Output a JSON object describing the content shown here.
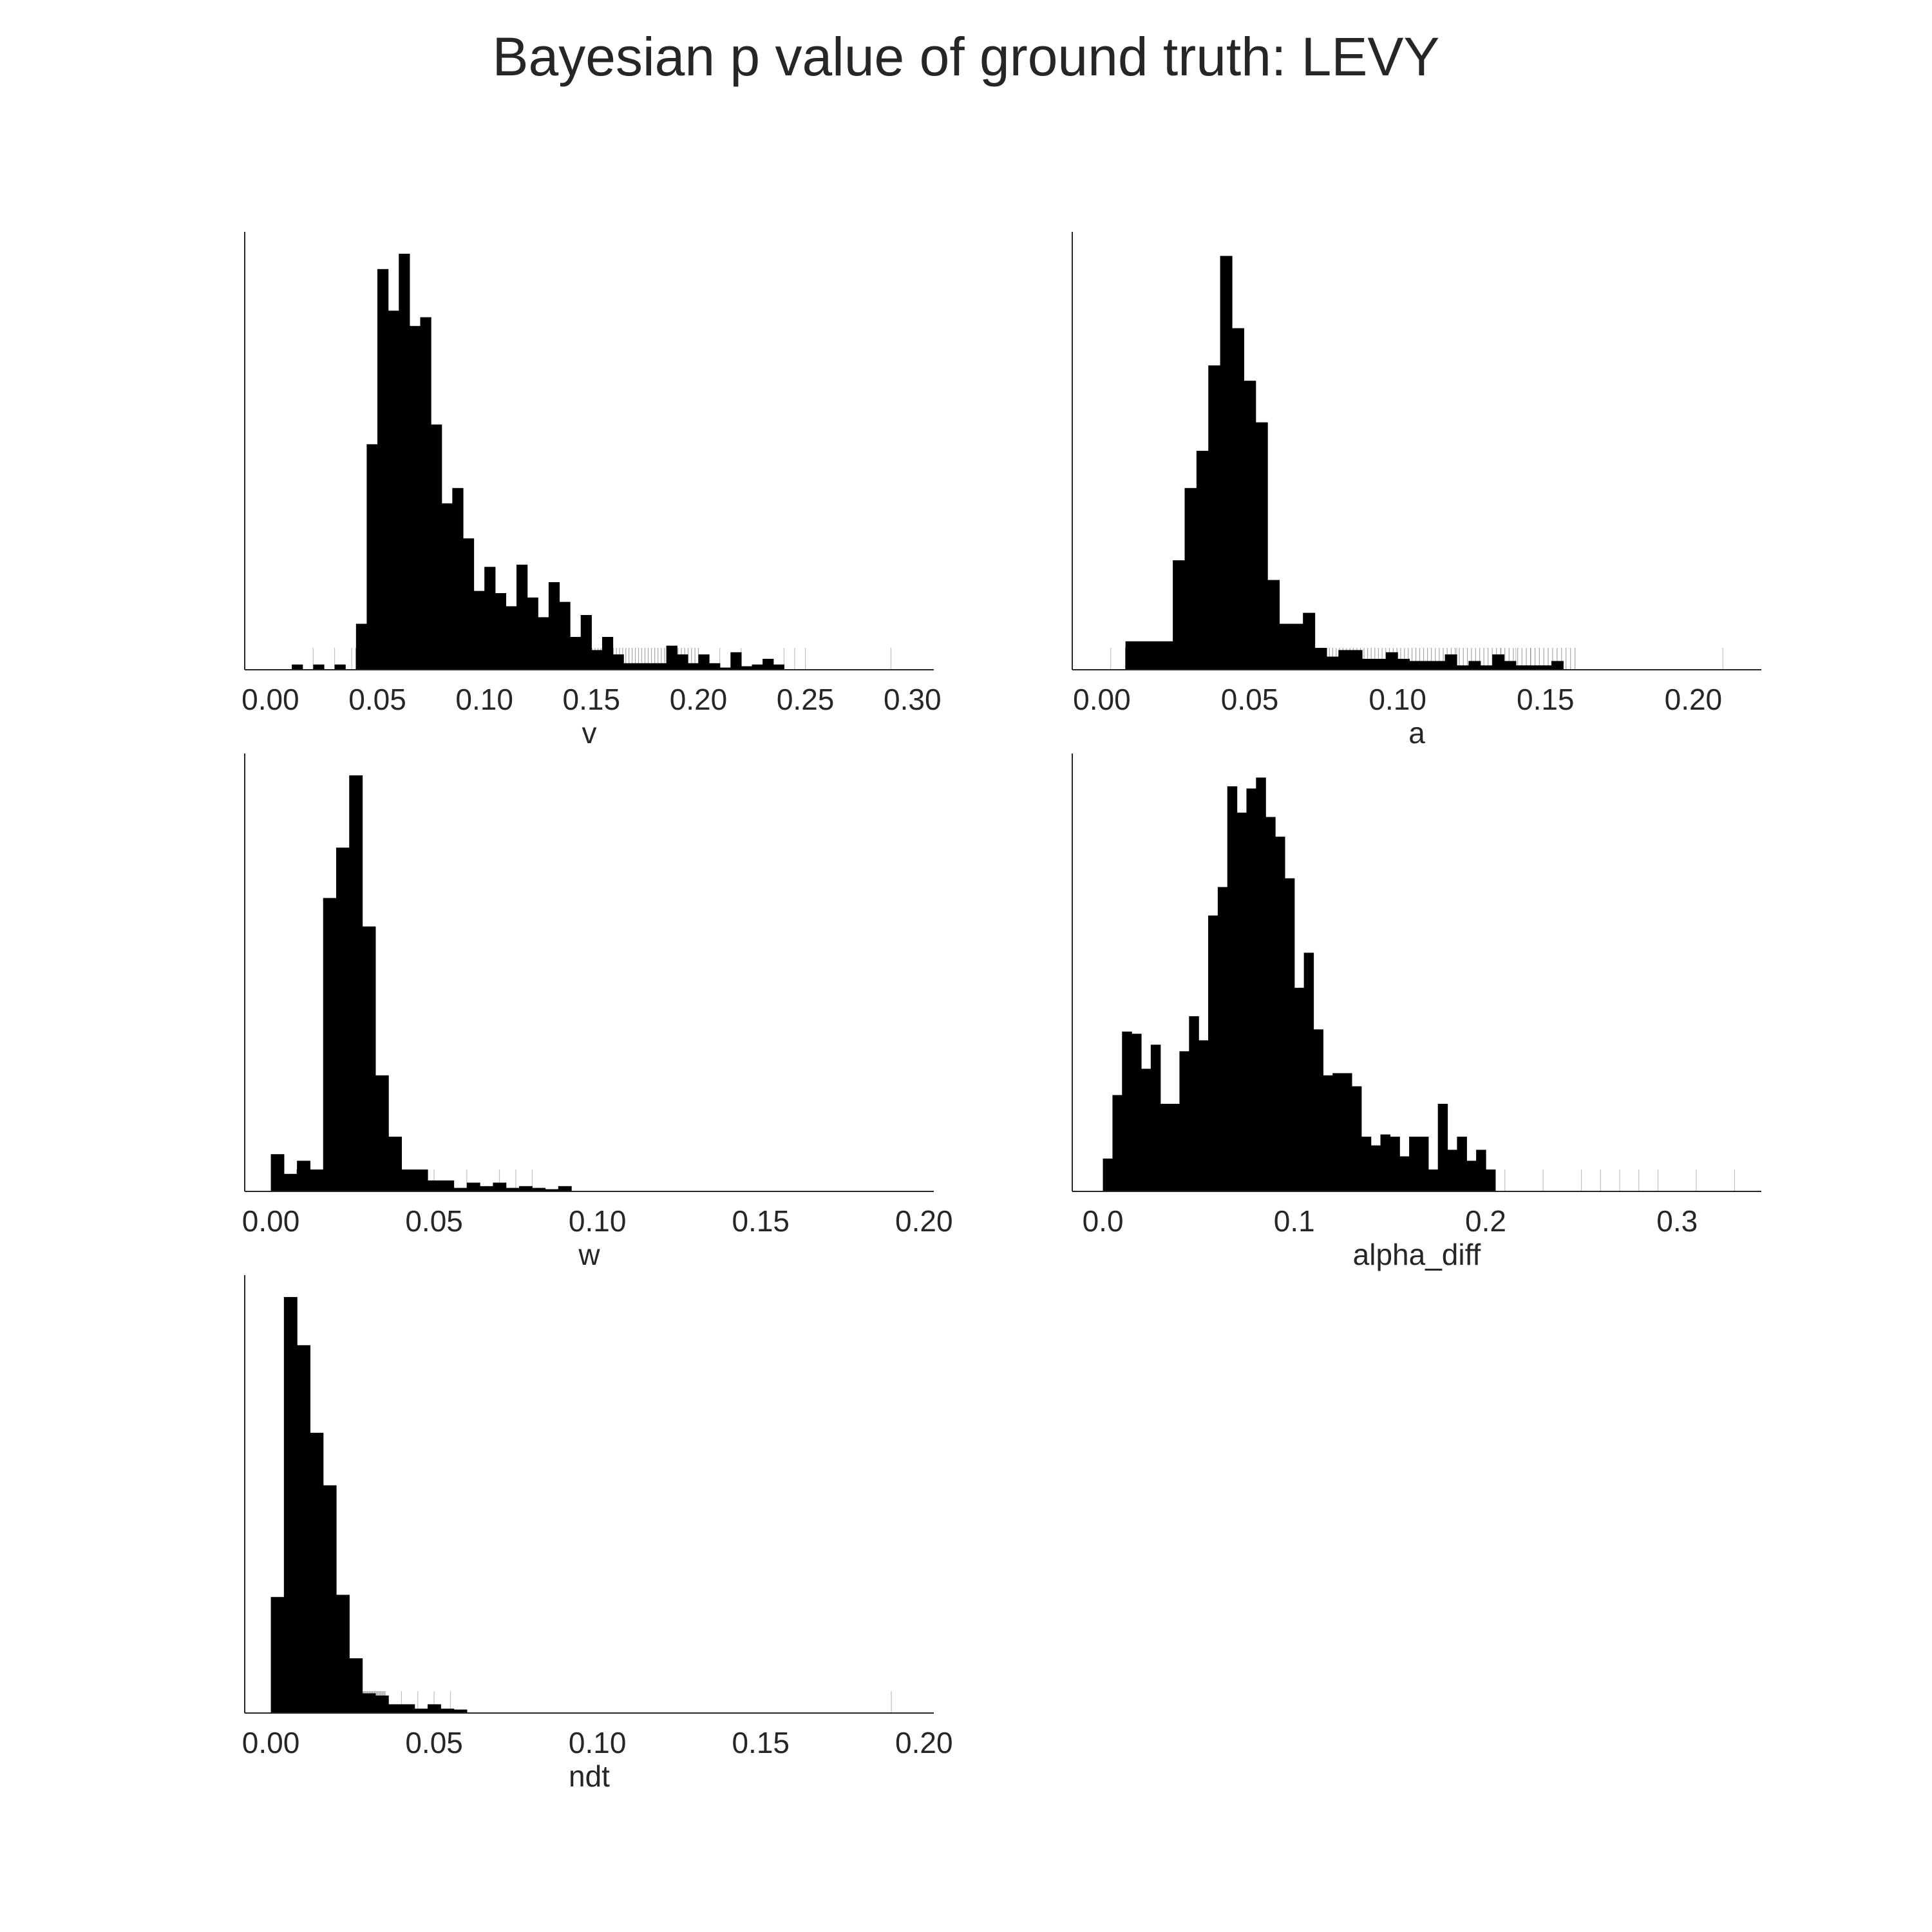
{
  "title": "Bayesian p value of ground truth: LEVY",
  "colors": {
    "bar": "#000000",
    "rug": "#000000",
    "axis": "#262626",
    "text": "#262626",
    "background": "#ffffff"
  },
  "chart_data": [
    {
      "type": "bar",
      "subtype": "histogram-with-rug",
      "xlabel": "v",
      "xlim": [
        -0.012,
        0.31
      ],
      "ylim": [
        0,
        100
      ],
      "xticks": [
        0.0,
        0.05,
        0.1,
        0.15,
        0.2,
        0.25,
        0.3
      ],
      "xtick_labels": [
        "0.00",
        "0.05",
        "0.10",
        "0.15",
        "0.20",
        "0.25",
        "0.30"
      ],
      "bin_width": 0.005,
      "bins": [
        [
          0.01,
          1.2
        ],
        [
          0.02,
          1.2
        ],
        [
          0.03,
          1.2
        ],
        [
          0.04,
          10.5
        ],
        [
          0.045,
          51.5
        ],
        [
          0.05,
          91.5
        ],
        [
          0.055,
          82
        ],
        [
          0.06,
          95
        ],
        [
          0.065,
          78.5
        ],
        [
          0.07,
          80.5
        ],
        [
          0.075,
          56
        ],
        [
          0.08,
          38
        ],
        [
          0.085,
          41.5
        ],
        [
          0.09,
          30
        ],
        [
          0.095,
          18
        ],
        [
          0.1,
          23.5
        ],
        [
          0.105,
          17.5
        ],
        [
          0.11,
          14.5
        ],
        [
          0.115,
          24
        ],
        [
          0.12,
          16.5
        ],
        [
          0.125,
          12
        ],
        [
          0.13,
          20
        ],
        [
          0.135,
          15.5
        ],
        [
          0.14,
          7.5
        ],
        [
          0.145,
          12.5
        ],
        [
          0.15,
          4.5
        ],
        [
          0.155,
          7.5
        ],
        [
          0.16,
          3.5
        ],
        [
          0.165,
          1.5
        ],
        [
          0.17,
          1.5
        ],
        [
          0.175,
          1.5
        ],
        [
          0.18,
          1.5
        ],
        [
          0.185,
          5.5
        ],
        [
          0.19,
          3.5
        ],
        [
          0.195,
          1.5
        ],
        [
          0.2,
          3.5
        ],
        [
          0.205,
          1.5
        ],
        [
          0.21,
          0.5
        ],
        [
          0.215,
          4
        ],
        [
          0.22,
          0.8
        ],
        [
          0.225,
          1.2
        ],
        [
          0.23,
          2.5
        ],
        [
          0.235,
          1.2
        ]
      ],
      "rug_range": [
        0.04,
        0.2
      ],
      "rug_outliers": [
        0.02,
        0.03,
        0.038,
        0.21,
        0.22,
        0.24,
        0.245,
        0.25,
        0.29
      ]
    },
    {
      "type": "bar",
      "subtype": "histogram-with-rug",
      "xlabel": "a",
      "xlim": [
        -0.01,
        0.223
      ],
      "ylim": [
        0,
        100
      ],
      "xticks": [
        0.0,
        0.05,
        0.1,
        0.15,
        0.2
      ],
      "xtick_labels": [
        "0.00",
        "0.05",
        "0.10",
        "0.15",
        "0.20"
      ],
      "bin_width": 0.004,
      "bins": [
        [
          0.008,
          6.5
        ],
        [
          0.012,
          6.5
        ],
        [
          0.016,
          6.5
        ],
        [
          0.02,
          6.5
        ],
        [
          0.024,
          25
        ],
        [
          0.028,
          41.5
        ],
        [
          0.032,
          50
        ],
        [
          0.036,
          69.5
        ],
        [
          0.04,
          94.5
        ],
        [
          0.044,
          78
        ],
        [
          0.048,
          66
        ],
        [
          0.052,
          56.5
        ],
        [
          0.056,
          20.5
        ],
        [
          0.06,
          10.5
        ],
        [
          0.064,
          10.5
        ],
        [
          0.068,
          13
        ],
        [
          0.072,
          5
        ],
        [
          0.076,
          3
        ],
        [
          0.08,
          4.5
        ],
        [
          0.084,
          4.5
        ],
        [
          0.088,
          2.5
        ],
        [
          0.092,
          2.5
        ],
        [
          0.096,
          4
        ],
        [
          0.1,
          2.5
        ],
        [
          0.104,
          2
        ],
        [
          0.108,
          2
        ],
        [
          0.112,
          2
        ],
        [
          0.116,
          3.5
        ],
        [
          0.12,
          1
        ],
        [
          0.124,
          2
        ],
        [
          0.128,
          1
        ],
        [
          0.132,
          3.5
        ],
        [
          0.136,
          2
        ],
        [
          0.14,
          1
        ],
        [
          0.144,
          1
        ],
        [
          0.148,
          1
        ],
        [
          0.152,
          2
        ]
      ],
      "rug_range": [
        0.008,
        0.16
      ],
      "rug_outliers": [
        0.003,
        0.12,
        0.135,
        0.14,
        0.145,
        0.21
      ]
    },
    {
      "type": "bar",
      "subtype": "histogram-with-rug",
      "xlabel": "w",
      "xlim": [
        -0.008,
        0.203
      ],
      "ylim": [
        0,
        100
      ],
      "xticks": [
        0.0,
        0.05,
        0.1,
        0.15,
        0.2
      ],
      "xtick_labels": [
        "0.00",
        "0.05",
        "0.10",
        "0.15",
        "0.20"
      ],
      "bin_width": 0.004,
      "bins": [
        [
          0.0,
          8.5
        ],
        [
          0.004,
          4
        ],
        [
          0.008,
          7
        ],
        [
          0.012,
          5
        ],
        [
          0.016,
          67
        ],
        [
          0.02,
          78.5
        ],
        [
          0.024,
          95
        ],
        [
          0.028,
          60.5
        ],
        [
          0.032,
          26.5
        ],
        [
          0.036,
          12.5
        ],
        [
          0.04,
          5
        ],
        [
          0.044,
          5
        ],
        [
          0.048,
          2.5
        ],
        [
          0.052,
          2.5
        ],
        [
          0.056,
          0.8
        ],
        [
          0.06,
          2
        ],
        [
          0.064,
          1.2
        ],
        [
          0.068,
          2
        ],
        [
          0.072,
          0.8
        ],
        [
          0.076,
          1.2
        ],
        [
          0.08,
          0.8
        ],
        [
          0.084,
          0.5
        ],
        [
          0.088,
          1.2
        ]
      ],
      "rug_range": [
        0.008,
        0.045
      ],
      "rug_outliers": [
        0.002,
        0.05,
        0.06,
        0.07,
        0.075,
        0.08
      ]
    },
    {
      "type": "bar",
      "subtype": "histogram-with-rug",
      "xlabel": "alpha_diff",
      "xlim": [
        -0.016,
        0.344
      ],
      "ylim": [
        0,
        100
      ],
      "xticks": [
        0.0,
        0.1,
        0.2,
        0.3
      ],
      "xtick_labels": [
        "0.0",
        "0.1",
        "0.2",
        "0.3"
      ],
      "bin_width": 0.005,
      "bins": [
        [
          0.0,
          7.5
        ],
        [
          0.005,
          22
        ],
        [
          0.01,
          36.5
        ],
        [
          0.015,
          36
        ],
        [
          0.02,
          28
        ],
        [
          0.025,
          33.5
        ],
        [
          0.03,
          20
        ],
        [
          0.035,
          20
        ],
        [
          0.04,
          32
        ],
        [
          0.045,
          40
        ],
        [
          0.05,
          34.5
        ],
        [
          0.055,
          63
        ],
        [
          0.06,
          69.5
        ],
        [
          0.065,
          92.5
        ],
        [
          0.07,
          86.5
        ],
        [
          0.075,
          92
        ],
        [
          0.08,
          94.5
        ],
        [
          0.085,
          85.5
        ],
        [
          0.09,
          81
        ],
        [
          0.095,
          71.5
        ],
        [
          0.1,
          46.5
        ],
        [
          0.105,
          54.5
        ],
        [
          0.11,
          37
        ],
        [
          0.115,
          26.5
        ],
        [
          0.12,
          27
        ],
        [
          0.125,
          27
        ],
        [
          0.13,
          24
        ],
        [
          0.135,
          12.5
        ],
        [
          0.14,
          10.5
        ],
        [
          0.145,
          13
        ],
        [
          0.15,
          12.5
        ],
        [
          0.155,
          8
        ],
        [
          0.16,
          12.5
        ],
        [
          0.165,
          12.5
        ],
        [
          0.17,
          5
        ],
        [
          0.175,
          20
        ],
        [
          0.18,
          9.5
        ],
        [
          0.185,
          12.5
        ],
        [
          0.19,
          7
        ],
        [
          0.195,
          9.5
        ],
        [
          0.2,
          5
        ]
      ],
      "rug_range": [
        0.005,
        0.2
      ],
      "rug_outliers": [
        0.21,
        0.23,
        0.25,
        0.26,
        0.27,
        0.28,
        0.29,
        0.31,
        0.33
      ]
    },
    {
      "type": "bar",
      "subtype": "histogram-with-rug",
      "xlabel": "ndt",
      "xlim": [
        -0.008,
        0.203
      ],
      "ylim": [
        0,
        100
      ],
      "xticks": [
        0.0,
        0.05,
        0.1,
        0.15,
        0.2
      ],
      "xtick_labels": [
        "0.00",
        "0.05",
        "0.10",
        "0.15",
        "0.20"
      ],
      "bin_width": 0.004,
      "bins": [
        [
          0.0,
          26.5
        ],
        [
          0.004,
          95
        ],
        [
          0.008,
          84
        ],
        [
          0.012,
          64
        ],
        [
          0.016,
          52
        ],
        [
          0.02,
          27
        ],
        [
          0.024,
          12.5
        ],
        [
          0.028,
          4.5
        ],
        [
          0.032,
          4
        ],
        [
          0.036,
          2
        ],
        [
          0.04,
          2
        ],
        [
          0.044,
          1
        ],
        [
          0.048,
          2
        ],
        [
          0.052,
          1
        ],
        [
          0.056,
          0.8
        ]
      ],
      "rug_range": [
        0.002,
        0.035
      ],
      "rug_outliers": [
        0.04,
        0.045,
        0.05,
        0.055,
        0.19
      ]
    }
  ]
}
